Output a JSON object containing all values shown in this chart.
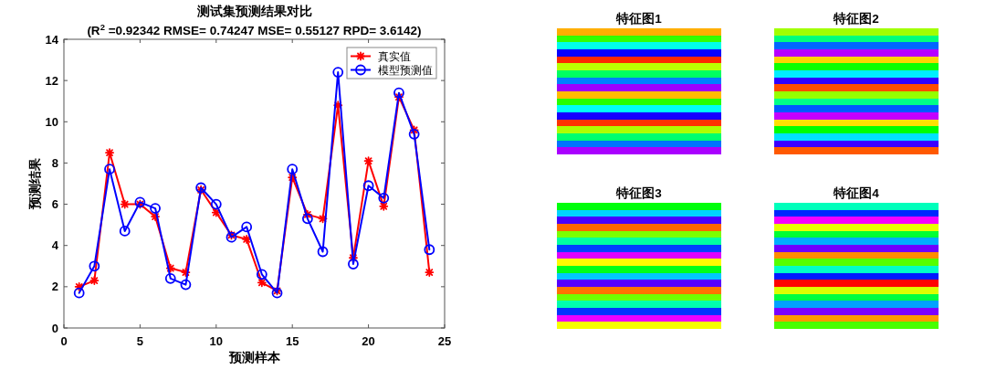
{
  "chart_data": [
    {
      "type": "line",
      "title": "测试集预测结果对比",
      "subtitle": "(R$^{2}$ =0.92342 RMSE= 0.74247 MSE= 0.55127 RPD= 3.6142)",
      "xlabel": "预测样本",
      "ylabel": "预测结果",
      "x": [
        1,
        2,
        3,
        4,
        5,
        6,
        7,
        8,
        9,
        10,
        11,
        12,
        13,
        14,
        15,
        16,
        17,
        18,
        19,
        20,
        21,
        22,
        23,
        24
      ],
      "series": [
        {
          "name": "真实值",
          "color": "#ff0000",
          "marker": "cross",
          "values": [
            2.0,
            2.3,
            8.5,
            6.0,
            6.0,
            5.4,
            2.9,
            2.7,
            6.7,
            5.6,
            4.5,
            4.3,
            2.2,
            1.8,
            7.3,
            5.5,
            5.3,
            10.8,
            3.4,
            8.1,
            5.9,
            11.2,
            9.6,
            2.7
          ]
        },
        {
          "name": "模型预测值",
          "color": "#0000ff",
          "marker": "circle",
          "values": [
            1.7,
            3.0,
            7.7,
            4.7,
            6.1,
            5.8,
            2.4,
            2.1,
            6.8,
            6.0,
            4.4,
            4.9,
            2.6,
            1.7,
            7.7,
            5.3,
            3.7,
            12.4,
            3.1,
            6.9,
            6.3,
            11.4,
            9.4,
            3.8
          ]
        }
      ],
      "xlim": [
        0,
        25
      ],
      "xticks": [
        0,
        5,
        10,
        15,
        20,
        25
      ],
      "ylim": [
        0,
        14
      ],
      "yticks": [
        0,
        2,
        4,
        6,
        8,
        10,
        12,
        14
      ],
      "legend": "top right",
      "line_style": "solid"
    },
    {
      "type": "other",
      "title": "特征图1"
    },
    {
      "type": "other",
      "title": "特征图2"
    },
    {
      "type": "other",
      "title": "特征图3"
    },
    {
      "type": "other",
      "title": "特征图4"
    }
  ]
}
